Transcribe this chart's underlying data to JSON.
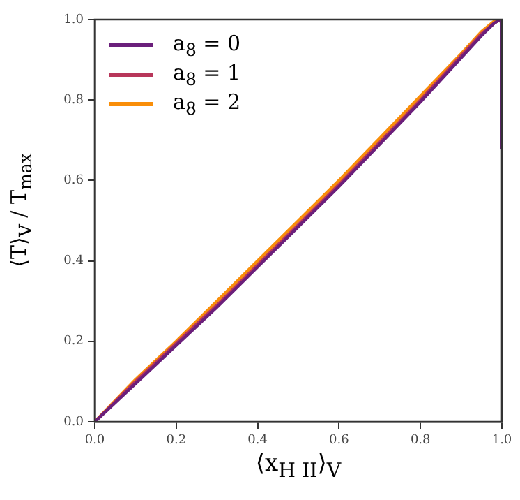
{
  "chart_data": {
    "type": "line",
    "xlabel": "⟨x$_{H II}$⟩$_{V}$",
    "ylabel": "⟨T⟩$_{V}$ / T$_{max}$",
    "xlim": [
      0,
      1
    ],
    "ylim": [
      0,
      1
    ],
    "xticks": [
      {
        "value": 0,
        "label": "0.0"
      },
      0.2,
      0.4,
      0.6,
      0.8,
      {
        "value": 1,
        "label": "1.0"
      }
    ],
    "yticks": [
      {
        "value": 0,
        "label": "0.0"
      },
      0.2,
      0.4,
      0.6,
      0.8,
      {
        "value": 1,
        "label": "1.0"
      }
    ],
    "grid": false,
    "legend": "top left",
    "marker": "none",
    "line_style": "solid",
    "series": [
      {
        "name": "a$_{8}$ = 0",
        "color": "#6b1f7b",
        "x": [
          0,
          0.1,
          0.2,
          0.3,
          0.4,
          0.5,
          0.6,
          0.7,
          0.8,
          0.9,
          0.95,
          0.98,
          0.995,
          1,
          1
        ],
        "values": [
          0,
          0.095,
          0.19,
          0.285,
          0.385,
          0.485,
          0.585,
          0.69,
          0.795,
          0.905,
          0.96,
          0.99,
          1,
          1,
          0.68
        ]
      },
      {
        "name": "a$_{8}$ = 1",
        "color": "#b8365a",
        "x": [
          0,
          0.1,
          0.2,
          0.3,
          0.4,
          0.5,
          0.6,
          0.7,
          0.8,
          0.9,
          0.95,
          0.98,
          0.995,
          1
        ],
        "values": [
          0,
          0.1,
          0.195,
          0.29,
          0.39,
          0.49,
          0.59,
          0.695,
          0.8,
          0.91,
          0.965,
          0.99,
          1,
          0.99
        ]
      },
      {
        "name": "a$_{8}$ = 2",
        "color": "#f98e09",
        "x": [
          0,
          0.1,
          0.2,
          0.3,
          0.4,
          0.5,
          0.6,
          0.7,
          0.8,
          0.9,
          0.95,
          0.98,
          0.995,
          1
        ],
        "values": [
          0,
          0.105,
          0.2,
          0.3,
          0.4,
          0.5,
          0.6,
          0.705,
          0.81,
          0.915,
          0.97,
          0.995,
          1,
          0.99
        ]
      }
    ]
  }
}
